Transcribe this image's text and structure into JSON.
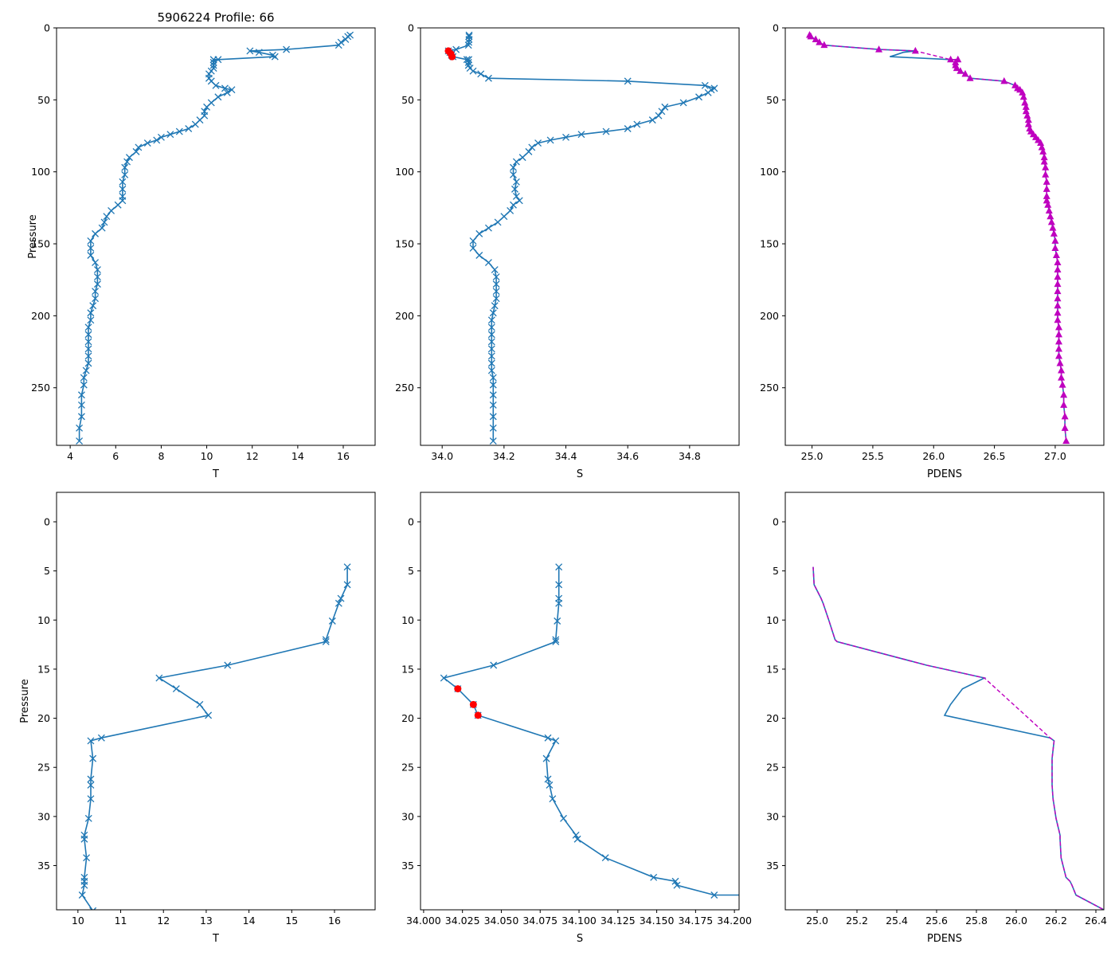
{
  "chart_data": [
    {
      "type": "line",
      "panel": "top-T",
      "title": "5906224 Profile: 66",
      "xlabel": "T",
      "ylabel": "Pressure",
      "xlim": [
        3.4,
        17.4
      ],
      "ylim": [
        290,
        0
      ],
      "xticks": [
        4,
        6,
        8,
        10,
        12,
        14,
        16
      ],
      "yticks": [
        0,
        50,
        100,
        150,
        200,
        250
      ],
      "series": [
        {
          "name": "T",
          "color": "#1f77b4",
          "marker": "x",
          "x": [
            16.3,
            16.2,
            16.1,
            15.9,
            15.8,
            13.5,
            11.9,
            12.3,
            12.9,
            13.0,
            10.5,
            10.3,
            10.3,
            10.3,
            10.3,
            10.2,
            10.1,
            10.1,
            10.2,
            10.4,
            10.8,
            11.1,
            10.9,
            10.5,
            10.2,
            10.0,
            9.9,
            9.9,
            9.7,
            9.5,
            9.2,
            8.8,
            8.4,
            8.0,
            7.8,
            7.4,
            7.0,
            6.9,
            6.6,
            6.5,
            6.4,
            6.4,
            6.3,
            6.3,
            6.3,
            6.3,
            6.1,
            5.8,
            5.6,
            5.5,
            5.4,
            5.1,
            4.9,
            4.9,
            4.9,
            5.1,
            5.2,
            5.2,
            5.2,
            5.1,
            5.1,
            5.0,
            4.9,
            4.9,
            4.8,
            4.8,
            4.8,
            4.8,
            4.8,
            4.8,
            4.7,
            4.6,
            4.6,
            4.5,
            4.5,
            4.5,
            4.4,
            4.4
          ],
          "y": [
            5,
            6,
            8,
            10,
            12,
            15,
            16,
            17,
            19,
            20,
            22,
            22,
            24,
            26,
            28,
            30,
            32,
            35,
            37,
            40,
            42,
            43,
            45,
            48,
            52,
            55,
            58,
            61,
            64,
            67,
            70,
            72,
            74,
            76,
            78,
            80,
            83,
            86,
            90,
            93,
            97,
            102,
            107,
            112,
            117,
            120,
            123,
            127,
            131,
            135,
            139,
            143,
            148,
            153,
            158,
            163,
            168,
            173,
            178,
            183,
            188,
            193,
            198,
            203,
            208,
            213,
            218,
            223,
            228,
            233,
            238,
            243,
            248,
            255,
            262,
            270,
            278,
            287
          ]
        }
      ]
    },
    {
      "type": "line",
      "panel": "top-S",
      "xlabel": "S",
      "ylabel": "",
      "xlim": [
        33.93,
        34.96
      ],
      "ylim": [
        290,
        0
      ],
      "xticks": [
        34.0,
        34.2,
        34.4,
        34.6,
        34.8
      ],
      "yticks": [
        0,
        50,
        100,
        150,
        200,
        250
      ],
      "series": [
        {
          "name": "S",
          "color": "#1f77b4",
          "marker": "x",
          "x": [
            34.087,
            34.087,
            34.087,
            34.086,
            34.085,
            34.045,
            34.02,
            34.025,
            34.03,
            34.035,
            34.08,
            34.086,
            34.085,
            34.085,
            34.09,
            34.1,
            34.125,
            34.15,
            34.6,
            34.85,
            34.88,
            34.87,
            34.86,
            34.83,
            34.78,
            34.72,
            34.71,
            34.7,
            34.68,
            34.63,
            34.6,
            34.53,
            34.45,
            34.4,
            34.35,
            34.31,
            34.29,
            34.28,
            34.26,
            34.24,
            34.23,
            34.23,
            34.24,
            34.235,
            34.24,
            34.25,
            34.23,
            34.22,
            34.2,
            34.18,
            34.15,
            34.12,
            34.1,
            34.1,
            34.12,
            34.15,
            34.17,
            34.175,
            34.175,
            34.175,
            34.175,
            34.17,
            34.165,
            34.16,
            34.16,
            34.16,
            34.16,
            34.16,
            34.16,
            34.16,
            34.16,
            34.165,
            34.165,
            34.165,
            34.165,
            34.165,
            34.165,
            34.165
          ],
          "y": [
            5,
            6,
            8,
            10,
            12,
            15,
            16,
            17,
            19,
            20,
            22,
            22,
            24,
            26,
            28,
            30,
            32,
            35,
            37,
            40,
            42,
            43,
            45,
            48,
            52,
            55,
            58,
            61,
            64,
            67,
            70,
            72,
            74,
            76,
            78,
            80,
            83,
            86,
            90,
            93,
            97,
            102,
            107,
            112,
            117,
            120,
            123,
            127,
            131,
            135,
            139,
            143,
            148,
            153,
            158,
            163,
            168,
            173,
            178,
            183,
            188,
            193,
            198,
            203,
            208,
            213,
            218,
            223,
            228,
            233,
            238,
            243,
            248,
            255,
            262,
            270,
            278,
            287
          ]
        }
      ],
      "flagged": {
        "color": "#ff0000",
        "marker": "o",
        "x": [
          34.02,
          34.028,
          34.032
        ],
        "y": [
          16,
          18,
          20
        ]
      }
    },
    {
      "type": "line",
      "panel": "top-PDENS",
      "xlabel": "PDENS",
      "ylabel": "",
      "xlim": [
        24.78,
        27.4
      ],
      "ylim": [
        290,
        0
      ],
      "xticks": [
        25.0,
        25.5,
        26.0,
        26.5,
        27.0
      ],
      "yticks": [
        0,
        50,
        100,
        150,
        200,
        250
      ],
      "series": [
        {
          "name": "PDENS",
          "color": "#1f77b4",
          "style": "solid",
          "x": [
            24.98,
            24.99,
            25.03,
            25.06,
            25.1,
            25.55,
            25.85,
            25.75,
            25.68,
            25.64,
            26.14,
            26.2,
            26.18,
            26.18,
            26.19,
            26.22,
            26.26,
            26.3,
            26.58,
            26.67,
            26.69,
            26.71,
            26.73,
            26.74,
            26.75,
            26.76,
            26.76,
            26.77,
            26.78,
            26.78,
            26.79,
            26.8,
            26.82,
            26.84,
            26.86,
            26.88,
            26.89,
            26.9,
            26.91,
            26.91,
            26.92,
            26.92,
            26.93,
            26.93,
            26.93,
            26.93,
            26.94,
            26.95,
            26.96,
            26.97,
            26.98,
            26.99,
            27.0,
            27.0,
            27.01,
            27.02,
            27.02,
            27.02,
            27.02,
            27.02,
            27.02,
            27.02,
            27.02,
            27.02,
            27.03,
            27.03,
            27.03,
            27.03,
            27.03,
            27.04,
            27.05,
            27.05,
            27.06,
            27.07,
            27.07,
            27.08,
            27.08,
            27.09
          ],
          "y": [
            5,
            6,
            8,
            10,
            12,
            15,
            16,
            17,
            19,
            20,
            22,
            22,
            24,
            26,
            28,
            30,
            32,
            35,
            37,
            40,
            42,
            43,
            45,
            48,
            52,
            55,
            58,
            61,
            64,
            67,
            70,
            72,
            74,
            76,
            78,
            80,
            83,
            86,
            90,
            93,
            97,
            102,
            107,
            112,
            117,
            120,
            123,
            127,
            131,
            135,
            139,
            143,
            148,
            153,
            158,
            163,
            168,
            173,
            178,
            183,
            188,
            193,
            198,
            203,
            208,
            213,
            218,
            223,
            228,
            233,
            238,
            243,
            248,
            255,
            262,
            270,
            278,
            287
          ]
        },
        {
          "name": "PDENS flagged",
          "color": "#bf00bf",
          "style": "dashed",
          "marker": "^",
          "x": [
            24.98,
            24.99,
            25.03,
            25.06,
            25.1,
            25.55,
            25.85,
            26.14,
            26.2,
            26.18,
            26.18,
            26.19,
            26.22,
            26.26,
            26.3,
            26.58,
            26.67,
            26.69,
            26.71,
            26.73,
            26.74,
            26.75,
            26.76,
            26.76,
            26.77,
            26.78,
            26.78,
            26.79,
            26.8,
            26.82,
            26.84,
            26.86,
            26.88,
            26.89,
            26.9,
            26.91,
            26.91,
            26.92,
            26.92,
            26.93,
            26.93,
            26.93,
            26.93,
            26.94,
            26.95,
            26.96,
            26.97,
            26.98,
            26.99,
            27.0,
            27.0,
            27.01,
            27.02,
            27.02,
            27.02,
            27.02,
            27.02,
            27.02,
            27.02,
            27.02,
            27.02,
            27.03,
            27.03,
            27.03,
            27.03,
            27.03,
            27.04,
            27.05,
            27.05,
            27.06,
            27.07,
            27.07,
            27.08,
            27.08,
            27.09
          ],
          "y": [
            5,
            6,
            8,
            10,
            12,
            15,
            16,
            22,
            22,
            24,
            26,
            28,
            30,
            32,
            35,
            37,
            40,
            42,
            43,
            45,
            48,
            52,
            55,
            58,
            61,
            64,
            67,
            70,
            72,
            74,
            76,
            78,
            80,
            83,
            86,
            90,
            93,
            97,
            102,
            107,
            112,
            117,
            120,
            123,
            127,
            131,
            135,
            139,
            143,
            148,
            153,
            158,
            163,
            168,
            173,
            178,
            183,
            188,
            193,
            198,
            203,
            208,
            213,
            218,
            223,
            228,
            233,
            238,
            243,
            248,
            255,
            262,
            270,
            278,
            287
          ]
        }
      ]
    },
    {
      "type": "line",
      "panel": "bottom-T",
      "xlabel": "T",
      "ylabel": "Pressure",
      "xlim": [
        9.5,
        16.95
      ],
      "ylim": [
        39.5,
        -3
      ],
      "xticks": [
        10,
        11,
        12,
        13,
        14,
        15,
        16
      ],
      "yticks": [
        0,
        5,
        10,
        15,
        20,
        25,
        30,
        35
      ],
      "series": [
        {
          "name": "T",
          "color": "#1f77b4",
          "marker": "x",
          "x": [
            16.3,
            16.3,
            16.15,
            16.1,
            15.95,
            15.8,
            15.8,
            13.5,
            11.9,
            12.3,
            12.85,
            13.05,
            10.55,
            10.3,
            10.35,
            10.3,
            10.3,
            10.3,
            10.25,
            10.15,
            10.15,
            10.2,
            10.15,
            10.15,
            10.15,
            10.1,
            10.35
          ],
          "y": [
            4.6,
            6.4,
            7.8,
            8.3,
            10.1,
            12.0,
            12.2,
            14.6,
            15.9,
            17.0,
            18.6,
            19.7,
            22.0,
            22.3,
            24.1,
            26.2,
            26.8,
            28.2,
            30.2,
            31.9,
            32.3,
            34.2,
            36.2,
            36.6,
            37.0,
            38.0,
            39.6
          ]
        }
      ]
    },
    {
      "type": "line",
      "panel": "bottom-S",
      "xlabel": "S",
      "ylabel": "",
      "xlim": [
        33.998,
        34.203
      ],
      "ylim": [
        39.5,
        -3
      ],
      "xticks": [
        34.0,
        34.025,
        34.05,
        34.075,
        34.1,
        34.125,
        34.15,
        34.175,
        34.2
      ],
      "yticks": [
        0,
        5,
        10,
        15,
        20,
        25,
        30,
        35
      ],
      "series": [
        {
          "name": "S",
          "color": "#1f77b4",
          "marker": "x",
          "x": [
            34.087,
            34.087,
            34.087,
            34.087,
            34.086,
            34.085,
            34.085,
            34.045,
            34.013,
            34.022,
            34.032,
            34.035,
            34.08,
            34.085,
            34.079,
            34.08,
            34.081,
            34.083,
            34.09,
            34.098,
            34.099,
            34.117,
            34.148,
            34.162,
            34.163,
            34.187,
            34.205
          ],
          "y": [
            4.6,
            6.4,
            7.8,
            8.3,
            10.1,
            12.0,
            12.2,
            14.6,
            15.9,
            17.0,
            18.6,
            19.7,
            22.0,
            22.3,
            24.1,
            26.2,
            26.8,
            28.2,
            30.2,
            31.9,
            32.3,
            34.2,
            36.2,
            36.6,
            37.0,
            38.0,
            38.0
          ]
        }
      ],
      "flagged": {
        "color": "#ff0000",
        "marker": "o",
        "x": [
          34.022,
          34.032,
          34.035
        ],
        "y": [
          17.0,
          18.6,
          19.7
        ]
      }
    },
    {
      "type": "line",
      "panel": "bottom-PDENS",
      "xlabel": "PDENS",
      "ylabel": "",
      "xlim": [
        24.84,
        26.44
      ],
      "ylim": [
        39.5,
        -3
      ],
      "xticks": [
        25.0,
        25.2,
        25.4,
        25.6,
        25.8,
        26.0,
        26.2,
        26.4
      ],
      "yticks": [
        0,
        5,
        10,
        15,
        20,
        25,
        30,
        35
      ],
      "series": [
        {
          "name": "PDENS",
          "color": "#1f77b4",
          "style": "solid",
          "x": [
            24.98,
            24.985,
            25.02,
            25.03,
            25.06,
            25.09,
            25.1,
            25.55,
            25.84,
            25.73,
            25.67,
            25.64,
            26.17,
            26.19,
            26.18,
            26.18,
            26.18,
            26.185,
            26.2,
            26.22,
            26.22,
            26.225,
            26.25,
            26.27,
            26.28,
            26.3,
            26.44
          ],
          "y": [
            4.6,
            6.4,
            7.8,
            8.3,
            10.1,
            12.0,
            12.2,
            14.6,
            15.9,
            17.0,
            18.6,
            19.7,
            22.0,
            22.3,
            24.1,
            26.2,
            26.8,
            28.2,
            30.2,
            31.9,
            32.3,
            34.2,
            36.2,
            36.6,
            37.0,
            38.0,
            39.5
          ]
        },
        {
          "name": "PDENS flagged",
          "color": "#bf00bf",
          "style": "dashed",
          "x": [
            24.98,
            24.985,
            25.02,
            25.03,
            25.06,
            25.09,
            25.1,
            25.55,
            25.84,
            26.17,
            26.19,
            26.18,
            26.18,
            26.18,
            26.185,
            26.2,
            26.22,
            26.22,
            26.225,
            26.25,
            26.27,
            26.28,
            26.3,
            26.44
          ],
          "y": [
            4.6,
            6.4,
            7.8,
            8.3,
            10.1,
            12.0,
            12.2,
            14.6,
            15.9,
            22.0,
            22.3,
            24.1,
            26.2,
            26.8,
            28.2,
            30.2,
            31.9,
            32.3,
            34.2,
            36.2,
            36.6,
            37.0,
            38.0,
            39.5
          ]
        }
      ]
    }
  ]
}
